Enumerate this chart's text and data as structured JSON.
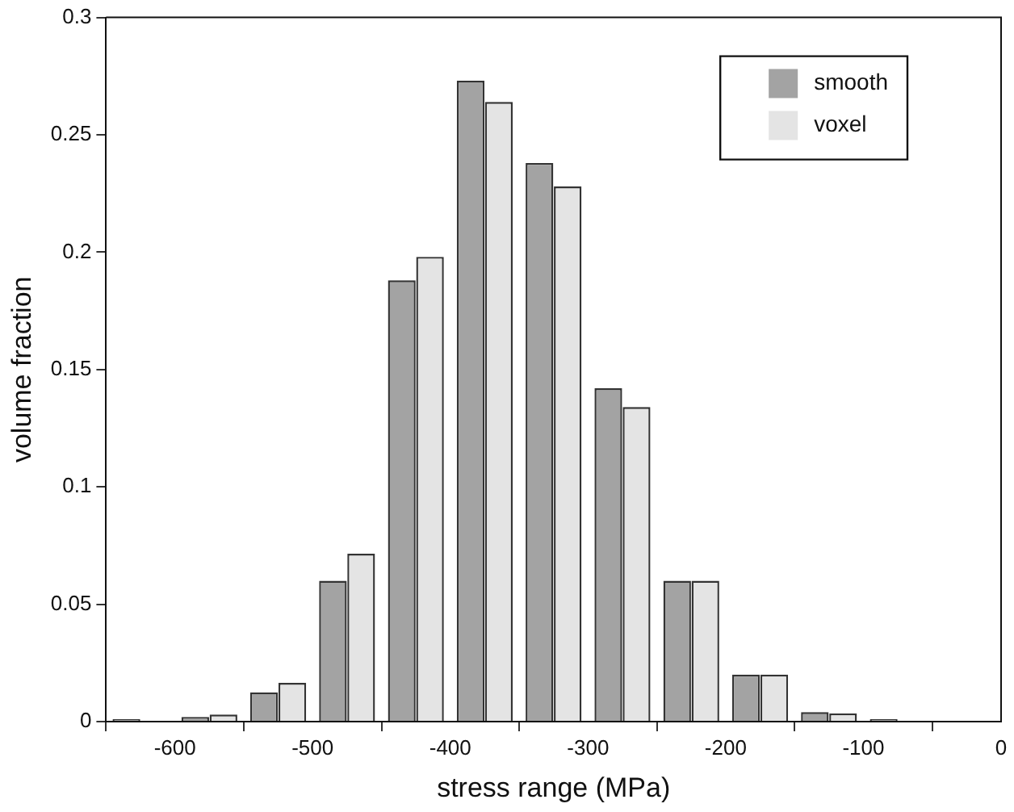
{
  "chart_data": {
    "type": "bar",
    "xlabel": "stress range (MPa)",
    "ylabel": "volume fraction",
    "x": [
      -625,
      -575,
      -525,
      -475,
      -425,
      -375,
      -325,
      -275,
      -225,
      -175,
      -125,
      -75
    ],
    "series": [
      {
        "name": "smooth",
        "color": "#a3a3a3",
        "values": [
          0.001,
          0.002,
          0.0125,
          0.06,
          0.188,
          0.273,
          0.238,
          0.142,
          0.06,
          0.02,
          0.004,
          0.001
        ]
      },
      {
        "name": "voxel",
        "color": "#e4e4e4",
        "values": [
          null,
          0.003,
          0.0165,
          0.0715,
          0.198,
          0.264,
          0.228,
          0.134,
          0.06,
          0.02,
          0.0035,
          null
        ]
      }
    ],
    "xlim": [
      -650,
      0
    ],
    "xticks": [
      -600,
      -500,
      -400,
      -300,
      -200,
      -100,
      0
    ],
    "ylim": [
      0,
      0.3
    ],
    "yticks": [
      0,
      0.05,
      0.1,
      0.15,
      0.2,
      0.25,
      0.3
    ],
    "legend": "top right",
    "grid": false
  }
}
